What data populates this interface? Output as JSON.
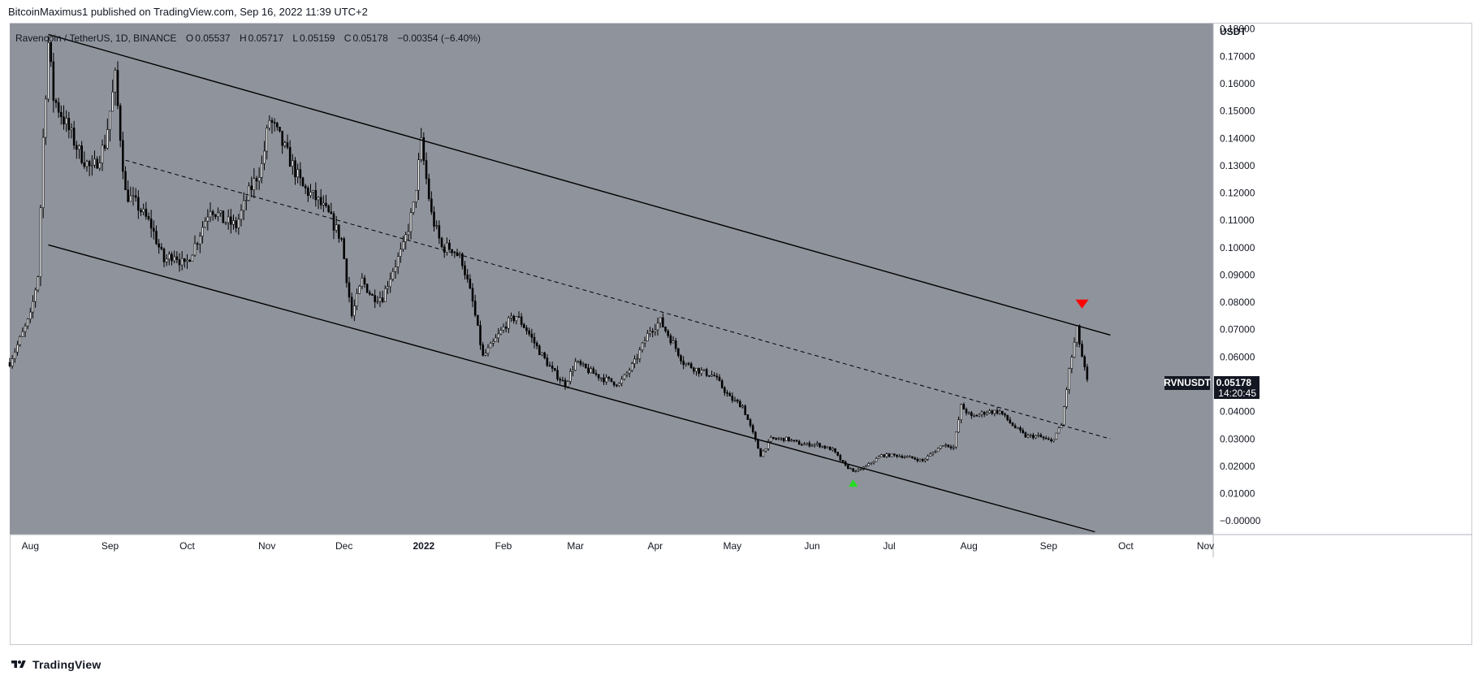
{
  "publisher_text": "BitcoinMaximus1 published on TradingView.com, Sep 16, 2022 11:39 UTC+2",
  "symbol": {
    "name": "Ravencoin / TetherUS, 1D, BINANCE",
    "o_label": "O",
    "o_value": "0.05537",
    "h_label": "H",
    "h_value": "0.05717",
    "l_label": "L",
    "l_value": "0.05159",
    "c_label": "C",
    "c_value": "0.05178",
    "change": "−0.00354 (−6.40%)"
  },
  "price_axis": {
    "unit": "USDT",
    "ticks": [
      "0.18000",
      "0.17000",
      "0.16000",
      "0.15000",
      "0.14000",
      "0.13000",
      "0.12000",
      "0.11000",
      "0.10000",
      "0.09000",
      "0.08000",
      "0.07000",
      "0.06000",
      "0.05000",
      "0.04000",
      "0.03000",
      "0.02000",
      "0.01000",
      "−0.00000"
    ]
  },
  "time_axis": {
    "labels": [
      "Aug",
      "Sep",
      "Oct",
      "Nov",
      "Dec",
      "2022",
      "Feb",
      "Mar",
      "Apr",
      "May",
      "Jun",
      "Jul",
      "Aug",
      "Sep",
      "Oct",
      "Nov"
    ]
  },
  "price_label": {
    "ticker": "RVNUSDT",
    "price": "0.05178",
    "countdown": "14:20:45",
    "color": "#131722"
  },
  "colors": {
    "plot_bg": "#8f939c",
    "candle_up": "#ffffff",
    "candle_down": "#000000",
    "channel_line": "#000000",
    "marker_top": "#ff0000",
    "marker_bottom": "#22dd22"
  },
  "footer_logo": "TradingView",
  "chart_data": {
    "type": "candlestick",
    "series_name": "RVNUSDT",
    "interval": "1D",
    "y_range": [
      -0.005,
      0.182
    ],
    "x_range": [
      "2021-07-24",
      "2022-11-04"
    ],
    "close_path": [
      [
        "2021-07-24",
        0.058
      ],
      [
        "2021-08-01",
        0.075
      ],
      [
        "2021-08-04",
        0.09
      ],
      [
        "2021-08-06",
        0.14
      ],
      [
        "2021-08-08",
        0.175
      ],
      [
        "2021-08-10",
        0.155
      ],
      [
        "2021-08-15",
        0.145
      ],
      [
        "2021-08-20",
        0.135
      ],
      [
        "2021-08-25",
        0.128
      ],
      [
        "2021-08-30",
        0.138
      ],
      [
        "2021-09-03",
        0.162
      ],
      [
        "2021-09-07",
        0.12
      ],
      [
        "2021-09-12",
        0.115
      ],
      [
        "2021-09-17",
        0.108
      ],
      [
        "2021-09-22",
        0.095
      ],
      [
        "2021-09-26",
        0.098
      ],
      [
        "2021-09-30",
        0.093
      ],
      [
        "2021-10-05",
        0.103
      ],
      [
        "2021-10-10",
        0.115
      ],
      [
        "2021-10-15",
        0.11
      ],
      [
        "2021-10-20",
        0.108
      ],
      [
        "2021-10-25",
        0.12
      ],
      [
        "2021-10-30",
        0.13
      ],
      [
        "2021-11-02",
        0.147
      ],
      [
        "2021-11-06",
        0.14
      ],
      [
        "2021-11-10",
        0.132
      ],
      [
        "2021-11-15",
        0.122
      ],
      [
        "2021-11-20",
        0.118
      ],
      [
        "2021-11-25",
        0.112
      ],
      [
        "2021-11-30",
        0.103
      ],
      [
        "2021-12-04",
        0.075
      ],
      [
        "2021-12-08",
        0.088
      ],
      [
        "2021-12-12",
        0.082
      ],
      [
        "2021-12-16",
        0.082
      ],
      [
        "2021-12-20",
        0.092
      ],
      [
        "2021-12-24",
        0.1
      ],
      [
        "2021-12-28",
        0.115
      ],
      [
        "2021-12-31",
        0.138
      ],
      [
        "2022-01-04",
        0.112
      ],
      [
        "2022-01-08",
        0.1
      ],
      [
        "2022-01-12",
        0.1
      ],
      [
        "2022-01-16",
        0.095
      ],
      [
        "2022-01-20",
        0.08
      ],
      [
        "2022-01-24",
        0.06
      ],
      [
        "2022-01-28",
        0.065
      ],
      [
        "2022-02-02",
        0.072
      ],
      [
        "2022-02-06",
        0.075
      ],
      [
        "2022-02-10",
        0.07
      ],
      [
        "2022-02-15",
        0.062
      ],
      [
        "2022-02-20",
        0.055
      ],
      [
        "2022-02-25",
        0.05
      ],
      [
        "2022-03-01",
        0.058
      ],
      [
        "2022-03-06",
        0.055
      ],
      [
        "2022-03-12",
        0.052
      ],
      [
        "2022-03-18",
        0.05
      ],
      [
        "2022-03-24",
        0.058
      ],
      [
        "2022-03-30",
        0.07
      ],
      [
        "2022-04-03",
        0.073
      ],
      [
        "2022-04-08",
        0.065
      ],
      [
        "2022-04-12",
        0.058
      ],
      [
        "2022-04-18",
        0.055
      ],
      [
        "2022-04-24",
        0.053
      ],
      [
        "2022-04-30",
        0.045
      ],
      [
        "2022-05-05",
        0.042
      ],
      [
        "2022-05-09",
        0.032
      ],
      [
        "2022-05-12",
        0.024
      ],
      [
        "2022-05-16",
        0.03
      ],
      [
        "2022-05-22",
        0.03
      ],
      [
        "2022-05-28",
        0.028
      ],
      [
        "2022-06-03",
        0.028
      ],
      [
        "2022-06-09",
        0.026
      ],
      [
        "2022-06-14",
        0.02
      ],
      [
        "2022-06-18",
        0.018
      ],
      [
        "2022-06-22",
        0.02
      ],
      [
        "2022-06-28",
        0.024
      ],
      [
        "2022-07-04",
        0.024
      ],
      [
        "2022-07-10",
        0.023
      ],
      [
        "2022-07-14",
        0.022
      ],
      [
        "2022-07-18",
        0.025
      ],
      [
        "2022-07-22",
        0.028
      ],
      [
        "2022-07-26",
        0.027
      ],
      [
        "2022-07-29",
        0.042
      ],
      [
        "2022-08-02",
        0.038
      ],
      [
        "2022-08-08",
        0.04
      ],
      [
        "2022-08-13",
        0.04
      ],
      [
        "2022-08-18",
        0.035
      ],
      [
        "2022-08-23",
        0.031
      ],
      [
        "2022-08-28",
        0.031
      ],
      [
        "2022-09-02",
        0.029
      ],
      [
        "2022-09-06",
        0.035
      ],
      [
        "2022-09-09",
        0.055
      ],
      [
        "2022-09-12",
        0.07
      ],
      [
        "2022-09-14",
        0.06
      ],
      [
        "2022-09-15",
        0.0554
      ],
      [
        "2022-09-16",
        0.05178
      ]
    ],
    "channel_upper": [
      [
        "2021-08-08",
        0.178
      ],
      [
        "2022-09-25",
        0.068
      ]
    ],
    "channel_lower": [
      [
        "2021-08-08",
        0.101
      ],
      [
        "2022-09-19",
        -0.004
      ]
    ],
    "channel_mid": [
      [
        "2021-09-07",
        0.132
      ],
      [
        "2022-09-25",
        0.03
      ]
    ],
    "markers": [
      {
        "date": "2022-09-14",
        "price": 0.0795,
        "shape": "triangle-down",
        "color": "#ff0000"
      },
      {
        "date": "2022-06-17",
        "price": 0.0137,
        "shape": "triangle-up",
        "color": "#22dd22"
      }
    ],
    "last_price": 0.05178
  }
}
